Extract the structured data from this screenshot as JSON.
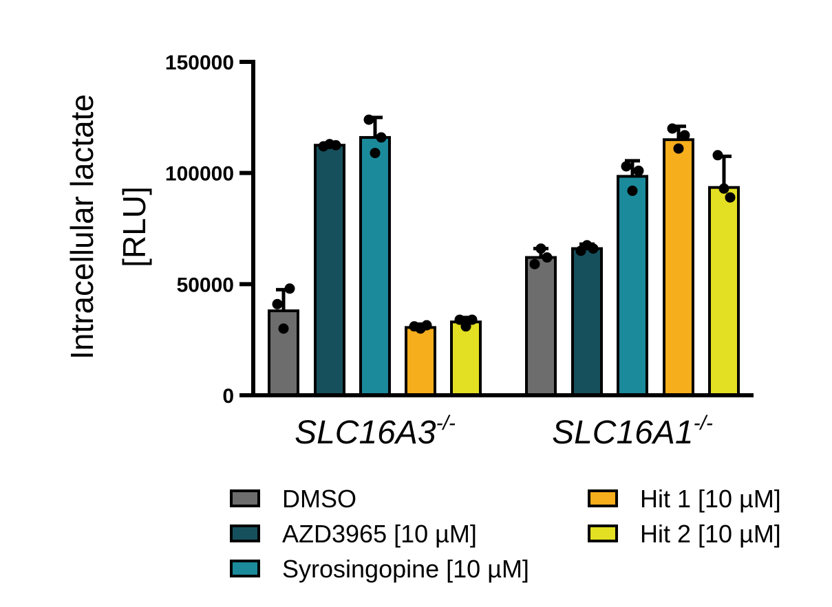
{
  "chart_data": {
    "type": "bar",
    "ylabel": [
      "Intracellular lactate",
      "[RLU]"
    ],
    "ylim": [
      0,
      150000
    ],
    "yticks": [
      0,
      50000,
      100000,
      150000
    ],
    "ytick_labels": [
      "0",
      "50000",
      "100000",
      "150000"
    ],
    "groups": [
      {
        "label": "SLC16A3",
        "superscript": "-/-"
      },
      {
        "label": "SLC16A1",
        "superscript": "-/-"
      }
    ],
    "series": [
      {
        "name": "DMSO",
        "color": "#6d6d6d",
        "values": [
          38000,
          62000
        ],
        "errors": [
          9500,
          4000
        ],
        "points": [
          [
            41000,
            30000,
            48000
          ],
          [
            59000,
            66000,
            62000
          ]
        ]
      },
      {
        "name": "AZD3965 [10 µM]",
        "color": "#17505d",
        "values": [
          112500,
          66000
        ],
        "errors": [
          1000,
          2000
        ],
        "points": [
          [
            112000,
            113000,
            112500
          ],
          [
            65000,
            67500,
            66000
          ]
        ]
      },
      {
        "name": "Syrosingopine [10 µM]",
        "color": "#1b8a9b",
        "values": [
          116000,
          98500
        ],
        "errors": [
          9000,
          7000
        ],
        "points": [
          [
            124000,
            109000,
            116000
          ],
          [
            103000,
            92000,
            101000
          ]
        ]
      },
      {
        "name": "Hit 1 [10 µM]",
        "color": "#f7ae1d",
        "values": [
          30500,
          115000
        ],
        "errors": [
          1500,
          6000
        ],
        "points": [
          [
            31000,
            30000,
            31500
          ],
          [
            120000,
            111000,
            117000
          ]
        ]
      },
      {
        "name": "Hit 2 [10 µM]",
        "color": "#e3df23",
        "values": [
          33000,
          93500
        ],
        "errors": [
          2000,
          14000
        ],
        "points": [
          [
            34000,
            31000,
            34000
          ],
          [
            108000,
            93000,
            89000
          ]
        ]
      }
    ],
    "legend_position": "bottom",
    "grid": false
  }
}
